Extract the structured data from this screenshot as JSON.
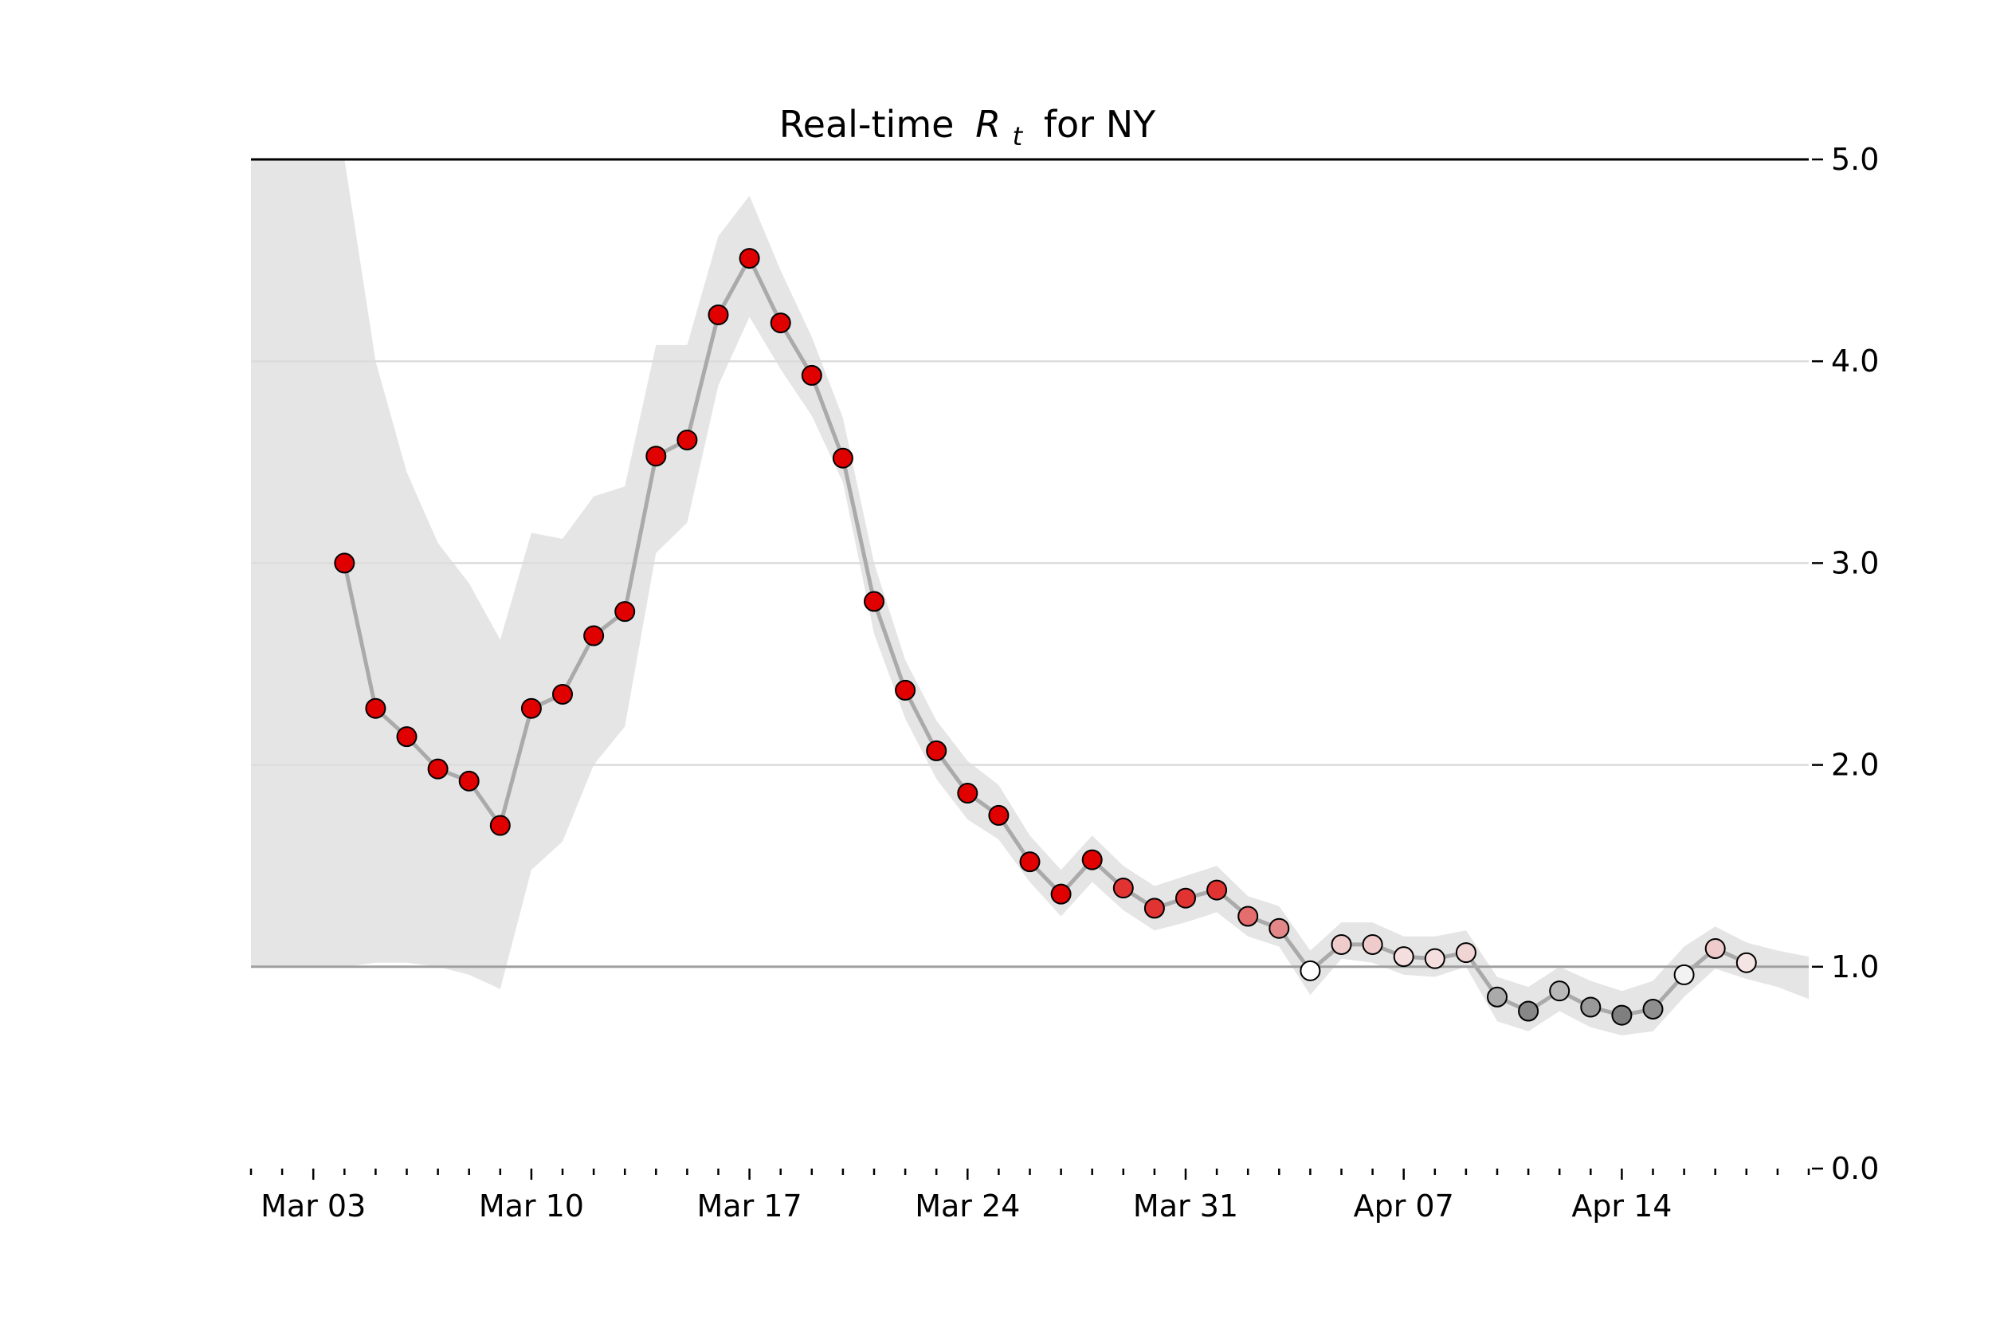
{
  "chart_data": {
    "type": "scatter",
    "title": "Real-time",
    "title_symbol": "R",
    "title_subscript": "t",
    "title_suffix": "for NY",
    "y_axis_side": "right",
    "ylim": [
      0.0,
      5.0
    ],
    "y_ticks": [
      0.0,
      1.0,
      2.0,
      3.0,
      4.0,
      5.0
    ],
    "y_tick_labels": [
      "0.0",
      "1.0",
      "2.0",
      "3.0",
      "4.0",
      "5.0"
    ],
    "xlim": [
      "2020-03-01",
      "2020-04-20"
    ],
    "x_ticks": [
      "2020-03-03",
      "2020-03-10",
      "2020-03-17",
      "2020-03-24",
      "2020-03-31",
      "2020-04-07",
      "2020-04-14"
    ],
    "x_tick_labels": [
      "Mar 03",
      "Mar 10",
      "Mar 17",
      "Mar 24",
      "Mar 31",
      "Apr 07",
      "Apr 14"
    ],
    "reference_line": 1.0,
    "grid": "horizontal",
    "colors": {
      "high": "#e00000",
      "neutral": "#ffffff",
      "low": "#7f7f7f",
      "band": "#e5e5e5",
      "line": "#aaaaaa"
    },
    "x": [
      "2020-03-04",
      "2020-03-05",
      "2020-03-06",
      "2020-03-07",
      "2020-03-08",
      "2020-03-09",
      "2020-03-10",
      "2020-03-11",
      "2020-03-12",
      "2020-03-13",
      "2020-03-14",
      "2020-03-15",
      "2020-03-16",
      "2020-03-17",
      "2020-03-18",
      "2020-03-19",
      "2020-03-20",
      "2020-03-21",
      "2020-03-22",
      "2020-03-23",
      "2020-03-24",
      "2020-03-25",
      "2020-03-26",
      "2020-03-27",
      "2020-03-28",
      "2020-03-29",
      "2020-03-30",
      "2020-03-31",
      "2020-04-01",
      "2020-04-02",
      "2020-04-03",
      "2020-04-04",
      "2020-04-05",
      "2020-04-06",
      "2020-04-07",
      "2020-04-08",
      "2020-04-09",
      "2020-04-10",
      "2020-04-11",
      "2020-04-12",
      "2020-04-13",
      "2020-04-14",
      "2020-04-15",
      "2020-04-16",
      "2020-04-17",
      "2020-04-18"
    ],
    "values": [
      3.0,
      2.28,
      2.14,
      1.98,
      1.92,
      1.7,
      2.28,
      2.35,
      2.64,
      2.76,
      3.53,
      3.61,
      4.23,
      4.51,
      4.19,
      3.93,
      3.52,
      2.81,
      2.37,
      2.07,
      1.86,
      1.75,
      1.52,
      1.36,
      1.53,
      1.39,
      1.29,
      1.34,
      1.38,
      1.25,
      1.19,
      0.98,
      1.11,
      1.11,
      1.05,
      1.04,
      1.07,
      0.85,
      0.78,
      0.88,
      0.8,
      0.76,
      0.79,
      0.96,
      1.09,
      1.02
    ],
    "band_x": [
      "2020-03-01",
      "2020-03-03",
      "2020-03-04",
      "2020-03-05",
      "2020-03-06",
      "2020-03-07",
      "2020-03-08",
      "2020-03-09",
      "2020-03-10",
      "2020-03-11",
      "2020-03-12",
      "2020-03-13",
      "2020-03-14",
      "2020-03-15",
      "2020-03-16",
      "2020-03-17",
      "2020-03-18",
      "2020-03-19",
      "2020-03-20",
      "2020-03-21",
      "2020-03-22",
      "2020-03-23",
      "2020-03-24",
      "2020-03-25",
      "2020-03-26",
      "2020-03-27",
      "2020-03-28",
      "2020-03-29",
      "2020-03-30",
      "2020-03-31",
      "2020-04-01",
      "2020-04-02",
      "2020-04-03",
      "2020-04-04",
      "2020-04-05",
      "2020-04-06",
      "2020-04-07",
      "2020-04-08",
      "2020-04-09",
      "2020-04-10",
      "2020-04-11",
      "2020-04-12",
      "2020-04-13",
      "2020-04-14",
      "2020-04-15",
      "2020-04-16",
      "2020-04-17",
      "2020-04-18",
      "2020-04-19",
      "2020-04-20"
    ],
    "band_upper": [
      5.0,
      5.0,
      5.0,
      4.0,
      3.45,
      3.1,
      2.9,
      2.62,
      3.15,
      3.12,
      3.33,
      3.38,
      4.08,
      4.08,
      4.62,
      4.82,
      4.45,
      4.12,
      3.72,
      3.0,
      2.52,
      2.22,
      2.02,
      1.9,
      1.65,
      1.48,
      1.65,
      1.5,
      1.4,
      1.45,
      1.5,
      1.35,
      1.3,
      1.08,
      1.22,
      1.22,
      1.15,
      1.15,
      1.18,
      0.95,
      0.9,
      1.0,
      0.93,
      0.88,
      0.93,
      1.1,
      1.2,
      1.12,
      1.08,
      1.05
    ],
    "band_lower": [
      1.0,
      1.0,
      1.0,
      1.02,
      1.02,
      1.0,
      0.96,
      0.89,
      1.48,
      1.62,
      2.0,
      2.19,
      3.05,
      3.2,
      3.88,
      4.22,
      3.96,
      3.73,
      3.4,
      2.65,
      2.23,
      1.93,
      1.73,
      1.63,
      1.42,
      1.25,
      1.42,
      1.28,
      1.18,
      1.22,
      1.27,
      1.15,
      1.1,
      0.86,
      1.04,
      1.02,
      0.96,
      0.95,
      1.0,
      0.73,
      0.68,
      0.78,
      0.7,
      0.66,
      0.68,
      0.85,
      0.99,
      0.94,
      0.9,
      0.84
    ],
    "point_colors": [
      "#e00000",
      "#e00000",
      "#e00000",
      "#e00000",
      "#e00000",
      "#e00000",
      "#e00000",
      "#e00000",
      "#e00000",
      "#e00000",
      "#e00000",
      "#e00000",
      "#e00000",
      "#e00000",
      "#e00000",
      "#e00000",
      "#e00000",
      "#e00000",
      "#e00000",
      "#e00000",
      "#e00000",
      "#e00000",
      "#e00000",
      "#e00000",
      "#e00000",
      "#e23333",
      "#e23333",
      "#e23333",
      "#e23333",
      "#e46d6d",
      "#e38888",
      "#ffffff",
      "#efcbcb",
      "#efcbcb",
      "#f5dede",
      "#f5dede",
      "#f1d5d5",
      "#aaaaaa",
      "#878787",
      "#b8b8b8",
      "#999999",
      "#7f7f7f",
      "#8e8e8e",
      "#f2f2f2",
      "#efcbcb",
      "#f5e4e4"
    ]
  }
}
